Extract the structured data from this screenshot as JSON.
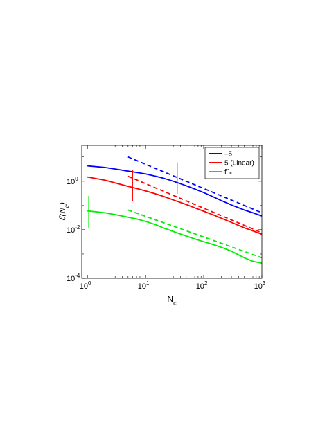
{
  "chart_data": {
    "type": "line",
    "xscale": "log",
    "yscale": "log",
    "xlim": [
      0.8,
      1000
    ],
    "ylim": [
      0.0001,
      30
    ],
    "xlabel": "N_c",
    "ylabel": "ℰ(N_c)",
    "grid": false,
    "legend_position": "top-right",
    "x_ticks": [
      {
        "value": 1,
        "base": "10",
        "exp": "0"
      },
      {
        "value": 10,
        "base": "10",
        "exp": "1"
      },
      {
        "value": 100,
        "base": "10",
        "exp": "2"
      },
      {
        "value": 1000,
        "base": "10",
        "exp": "3"
      }
    ],
    "y_ticks": [
      {
        "value": 0.0001,
        "base": "10",
        "exp": "-4"
      },
      {
        "value": 0.01,
        "base": "10",
        "exp": "-2"
      },
      {
        "value": 1,
        "base": "10",
        "exp": "0"
      }
    ],
    "series": [
      {
        "name": "–5",
        "color": "#0000ff",
        "x": [
          1,
          2,
          3,
          5,
          7,
          10,
          15,
          20,
          30,
          50,
          70,
          100,
          150,
          200,
          300,
          500,
          700,
          1000
        ],
        "y": [
          4.3,
          3.7,
          3.2,
          2.6,
          2.3,
          2.0,
          1.6,
          1.35,
          1.0,
          0.65,
          0.48,
          0.34,
          0.22,
          0.16,
          0.105,
          0.065,
          0.05,
          0.037
        ],
        "fit": {
          "x": [
            5,
            1000
          ],
          "y": [
            10,
            0.05
          ]
        },
        "error_bar": {
          "x": 35,
          "y_low": 0.3,
          "y_high": 6.0
        }
      },
      {
        "name": "5 (Linear)",
        "color": "#ff0000",
        "x": [
          1,
          2,
          3,
          5,
          7,
          10,
          15,
          20,
          30,
          50,
          70,
          100,
          150,
          200,
          300,
          500,
          700,
          1000
        ],
        "y": [
          1.5,
          1.1,
          0.85,
          0.62,
          0.5,
          0.4,
          0.3,
          0.24,
          0.17,
          0.11,
          0.08,
          0.058,
          0.04,
          0.03,
          0.02,
          0.012,
          0.009,
          0.0065
        ],
        "fit": {
          "x": [
            5,
            1000
          ],
          "y": [
            1.6,
            0.0075
          ]
        },
        "error_bar": {
          "x": 6,
          "y_low": 0.15,
          "y_high": 3.0
        }
      },
      {
        "name": "f˘₊",
        "color": "#00ee00",
        "x": [
          1,
          2,
          3,
          5,
          7,
          10,
          15,
          20,
          30,
          50,
          70,
          100,
          150,
          200,
          300,
          500,
          700,
          1000
        ],
        "y": [
          0.06,
          0.05,
          0.042,
          0.033,
          0.028,
          0.022,
          0.016,
          0.012,
          0.0085,
          0.0055,
          0.0042,
          0.0032,
          0.0024,
          0.0019,
          0.0013,
          0.0007,
          0.0005,
          0.00042
        ],
        "fit": {
          "x": [
            5,
            1000
          ],
          "y": [
            0.065,
            0.0007
          ]
        },
        "error_bar": {
          "x": 1.05,
          "y_low": 0.012,
          "y_high": 0.25
        }
      }
    ]
  }
}
